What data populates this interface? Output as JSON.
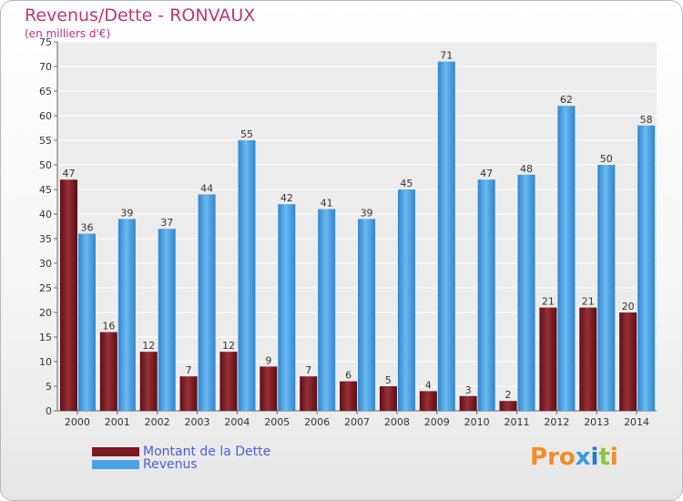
{
  "title": "Revenus/Dette - RONVAUX",
  "subtitle": "(en milliers d'€)",
  "logo": {
    "text": "Proxiti",
    "letter_colors": [
      "#f28c28",
      "#f28c28",
      "#f28c28",
      "#3a9be0",
      "#1f7fd0",
      "#8cc63f",
      "#f28c28"
    ]
  },
  "legend": [
    {
      "label": "Montant de la Dette",
      "color": "#7b1a20"
    },
    {
      "label": "Revenus",
      "color": "#4aa3e6"
    }
  ],
  "chart_data": {
    "type": "bar",
    "categories": [
      "2000",
      "2001",
      "2002",
      "2003",
      "2004",
      "2005",
      "2006",
      "2007",
      "2008",
      "2009",
      "2010",
      "2011",
      "2012",
      "2013",
      "2014"
    ],
    "series": [
      {
        "name": "Montant de la Dette",
        "color": "#7b1a20",
        "values": [
          47,
          16,
          12,
          7,
          12,
          9,
          7,
          6,
          5,
          4,
          3,
          2,
          21,
          21,
          20
        ]
      },
      {
        "name": "Revenus",
        "color": "#4aa3e6",
        "values": [
          36,
          39,
          37,
          44,
          55,
          42,
          41,
          39,
          45,
          71,
          47,
          48,
          62,
          50,
          58
        ]
      }
    ],
    "ylim": [
      0,
      75
    ],
    "ytick_step": 5,
    "yticks": [
      "0",
      "5",
      "10",
      "15",
      "20",
      "25",
      "30",
      "35",
      "40",
      "45",
      "50",
      "55",
      "60",
      "65",
      "70",
      "75"
    ],
    "grid": true,
    "legend_position": "bottom-left"
  }
}
